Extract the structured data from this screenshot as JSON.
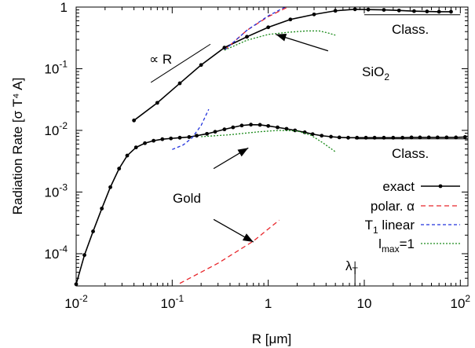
{
  "chart_data": {
    "type": "line",
    "xscale": "log",
    "yscale": "log",
    "xlim": [
      0.01,
      120
    ],
    "ylim": [
      3e-05,
      1
    ],
    "xlabel": "R [μm]",
    "ylabel": "Radiation Rate [σ T⁴ A]",
    "xticks": [
      {
        "value": 0.01,
        "base": "10",
        "exp": "-2"
      },
      {
        "value": 0.1,
        "base": "10",
        "exp": "-1"
      },
      {
        "value": 1,
        "base": "1",
        "exp": ""
      },
      {
        "value": 10,
        "base": "10",
        "exp": ""
      },
      {
        "value": 100,
        "base": "10",
        "exp": "2"
      }
    ],
    "yticks": [
      {
        "value": 0.0001,
        "base": "10",
        "exp": "-4"
      },
      {
        "value": 0.001,
        "base": "10",
        "exp": "-3"
      },
      {
        "value": 0.01,
        "base": "10",
        "exp": "-2"
      },
      {
        "value": 0.1,
        "base": "10",
        "exp": "-1"
      },
      {
        "value": 1,
        "base": "1",
        "exp": ""
      }
    ],
    "grid": false,
    "legend": "bottom-right",
    "legend_entries": [
      {
        "key": "exact",
        "label": "exact",
        "sub": "",
        "color": "#000000",
        "dash": "",
        "marker": true
      },
      {
        "key": "polar",
        "label": "polar. α",
        "sub": "",
        "color": "#e8262b",
        "dash": "6,4",
        "marker": false
      },
      {
        "key": "t1",
        "label": "T",
        "sub": "1",
        "after": " linear",
        "color": "#2233dd",
        "dash": "4,3",
        "marker": false
      },
      {
        "key": "lmax",
        "label": "l",
        "sub": "max",
        "after": "=1",
        "color": "#1a8a1a",
        "dash": "2,2",
        "marker": false
      }
    ],
    "series": [
      {
        "key": "exact",
        "group": "SiO2",
        "x": [
          0.04,
          0.07,
          0.12,
          0.2,
          0.35,
          0.6,
          1.0,
          1.7,
          3.0,
          5.0,
          8.0,
          11,
          16,
          23,
          33,
          45,
          60,
          80
        ],
        "y": [
          0.0145,
          0.028,
          0.058,
          0.115,
          0.22,
          0.33,
          0.47,
          0.63,
          0.76,
          0.87,
          0.92,
          0.91,
          0.9,
          0.88,
          0.86,
          0.85,
          0.84,
          0.84
        ]
      },
      {
        "key": "exact",
        "group": "Gold",
        "x": [
          0.01,
          0.0122,
          0.015,
          0.0185,
          0.0227,
          0.028,
          0.034,
          0.042,
          0.052,
          0.064,
          0.079,
          0.097,
          0.12,
          0.15,
          0.18,
          0.23,
          0.28,
          0.35,
          0.43,
          0.53,
          0.66,
          0.82,
          1.0,
          1.25,
          1.55,
          1.9,
          2.4,
          2.9,
          3.6,
          4.5,
          5.5,
          6.8,
          8.4,
          10.4,
          12.8,
          16,
          20,
          25,
          31,
          38,
          47,
          58,
          72,
          90,
          112
        ],
        "y": [
          3.2e-05,
          9.5e-05,
          0.00023,
          0.00054,
          0.0012,
          0.0024,
          0.0039,
          0.0053,
          0.0062,
          0.0068,
          0.0072,
          0.0074,
          0.0076,
          0.0078,
          0.0082,
          0.0088,
          0.0095,
          0.0104,
          0.0112,
          0.012,
          0.0124,
          0.0123,
          0.0118,
          0.0112,
          0.0106,
          0.01,
          0.0093,
          0.0087,
          0.0082,
          0.0079,
          0.0077,
          0.0076,
          0.0076,
          0.0076,
          0.0076,
          0.0076,
          0.0076,
          0.0076,
          0.0077,
          0.0077,
          0.0077,
          0.0077,
          0.0077,
          0.0077,
          0.0078
        ]
      },
      {
        "key": "polar",
        "group": "SiO2",
        "x": [
          0.35,
          0.6,
          1.0,
          1.6
        ],
        "y": [
          0.2,
          0.42,
          0.7,
          1.0
        ]
      },
      {
        "key": "polar",
        "group": "Gold",
        "x": [
          0.12,
          0.3,
          0.7,
          1.3
        ],
        "y": [
          3.3e-05,
          7e-05,
          0.00016,
          0.00035
        ]
      },
      {
        "key": "t1",
        "group": "SiO2",
        "x": [
          0.35,
          0.6,
          1.0,
          1.5
        ],
        "y": [
          0.2,
          0.42,
          0.72,
          1.0
        ]
      },
      {
        "key": "t1",
        "group": "Gold",
        "x": [
          0.1,
          0.13,
          0.16,
          0.2,
          0.24
        ],
        "y": [
          0.0049,
          0.0058,
          0.0075,
          0.012,
          0.022
        ]
      },
      {
        "key": "lmax",
        "group": "SiO2",
        "x": [
          0.35,
          0.6,
          1.0,
          1.6,
          2.5,
          3.4,
          4.2,
          5.0
        ],
        "y": [
          0.2,
          0.29,
          0.36,
          0.39,
          0.41,
          0.41,
          0.38,
          0.35
        ]
      },
      {
        "key": "lmax",
        "group": "Gold",
        "x": [
          0.2,
          0.4,
          0.8,
          1.3,
          2.0,
          2.8,
          3.7,
          5.0
        ],
        "y": [
          0.0079,
          0.0085,
          0.0095,
          0.01,
          0.0098,
          0.0083,
          0.0063,
          0.0045
        ]
      }
    ],
    "reference_lines": [
      {
        "name": "classical-sio2",
        "x": [
          10,
          100
        ],
        "y": [
          0.75,
          0.75
        ]
      },
      {
        "name": "classical-gold",
        "x": [
          8,
          120
        ],
        "y": [
          0.0073,
          0.0073
        ]
      },
      {
        "name": "proportional-R",
        "x": [
          0.06,
          0.25
        ],
        "y": [
          0.06,
          0.25
        ]
      },
      {
        "name": "lambda-t-marker",
        "x": [
          8,
          8
        ],
        "y": [
          3e-05,
          7.5e-05
        ]
      }
    ],
    "annotations": {
      "prop_r": "∝ R",
      "sio2_base": "SiO",
      "sio2_sub": "2",
      "gold": "Gold",
      "class_top": "Class.",
      "class_bottom": "Class.",
      "lambda_base": "λ",
      "lambda_sub": "T"
    },
    "arrows": [
      {
        "name": "arrow-sio2",
        "from": [
          4.2,
          0.195
        ],
        "to": [
          1.2,
          0.36
        ]
      },
      {
        "name": "arrow-gold-up",
        "from": [
          0.27,
          0.0024
        ],
        "to": [
          0.62,
          0.0052
        ]
      },
      {
        "name": "arrow-gold-down",
        "from": [
          0.27,
          0.00036
        ],
        "to": [
          0.7,
          0.000155
        ]
      }
    ]
  }
}
